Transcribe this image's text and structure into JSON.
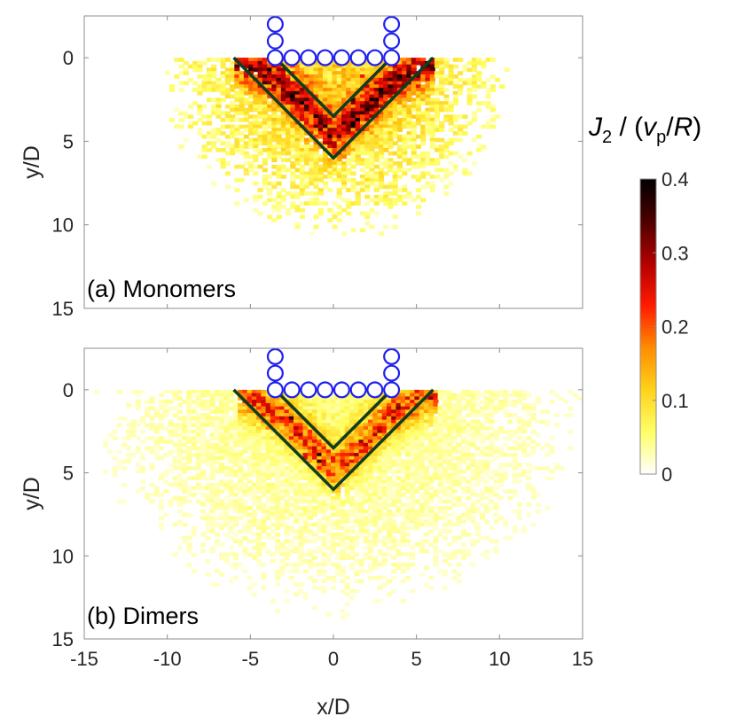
{
  "colors": {
    "background": "#ffffff",
    "axis": "#8c8c8c",
    "text": "#262626",
    "wedge": "#0f3d21",
    "particle": "#1f1ff0",
    "colormap": [
      "#ffffff",
      "#ffff66",
      "#ffd21a",
      "#ff8c00",
      "#ff1a00",
      "#b30000",
      "#4d0000",
      "#000000"
    ]
  },
  "colorbar": {
    "title_var": "J",
    "title_sub": "2",
    "title_mid": " / (",
    "title_v": "v",
    "title_vsub": "p",
    "title_slash": "/",
    "title_R": "R",
    "title_close": ")",
    "min": 0,
    "max": 0.4,
    "ticks": [
      "0",
      "0.1",
      "0.2",
      "0.3",
      "0.4"
    ]
  },
  "chart_data": [
    {
      "type": "heatmap",
      "panel_label": "(a) Monomers",
      "xlabel": "",
      "ylabel": "y/D",
      "xlim": [
        -15,
        15
      ],
      "ylim": [
        15,
        -2.5
      ],
      "y_inverted": true,
      "yticks": [
        "0",
        "5",
        "10",
        "15"
      ],
      "xticks": [],
      "field": {
        "x_extent": [
          -11,
          11
        ],
        "depth": 11,
        "core_x": [
          -6,
          6
        ],
        "hot_bands": "V-shaped band between the two wedge lines",
        "typical_value": 0.12,
        "max_value": 0.35
      },
      "wedge_lines": [
        {
          "x": [
            -6,
            0,
            6
          ],
          "y": [
            0,
            6,
            0
          ]
        },
        {
          "x": [
            -3.5,
            0,
            3.5
          ],
          "y": [
            0,
            3.5,
            0
          ]
        }
      ],
      "particles": {
        "diameter": 1,
        "centers": [
          {
            "x": -3.5,
            "y": -2
          },
          {
            "x": -3.5,
            "y": -1
          },
          {
            "x": -3.5,
            "y": 0
          },
          {
            "x": -2.5,
            "y": 0
          },
          {
            "x": -1.5,
            "y": 0
          },
          {
            "x": -0.5,
            "y": 0
          },
          {
            "x": 0.5,
            "y": 0
          },
          {
            "x": 1.5,
            "y": 0
          },
          {
            "x": 2.5,
            "y": 0
          },
          {
            "x": 3.5,
            "y": 0
          },
          {
            "x": 3.5,
            "y": -1
          },
          {
            "x": 3.5,
            "y": -2
          }
        ]
      }
    },
    {
      "type": "heatmap",
      "panel_label": "(b) Dimers",
      "xlabel": "x/D",
      "ylabel": "y/D",
      "xlim": [
        -15,
        15
      ],
      "ylim": [
        15,
        -2.5
      ],
      "y_inverted": true,
      "yticks": [
        "0",
        "5",
        "10",
        "15"
      ],
      "xticks": [
        "-15",
        "-10",
        "-5",
        "0",
        "5",
        "10",
        "15"
      ],
      "field": {
        "x_extent": [
          -15,
          15
        ],
        "depth": 14,
        "core_x": [
          -6,
          6
        ],
        "hot_bands": "V-shaped band between the two wedge lines, broad faint halo",
        "typical_value": 0.08,
        "max_value": 0.35
      },
      "wedge_lines": [
        {
          "x": [
            -6,
            0,
            6
          ],
          "y": [
            0,
            6,
            0
          ]
        },
        {
          "x": [
            -3.5,
            0,
            3.5
          ],
          "y": [
            0,
            3.5,
            0
          ]
        }
      ],
      "particles": {
        "diameter": 1,
        "centers": [
          {
            "x": -3.5,
            "y": -2
          },
          {
            "x": -3.5,
            "y": -1
          },
          {
            "x": -3.5,
            "y": 0
          },
          {
            "x": -2.5,
            "y": 0
          },
          {
            "x": -1.5,
            "y": 0
          },
          {
            "x": -0.5,
            "y": 0
          },
          {
            "x": 0.5,
            "y": 0
          },
          {
            "x": 1.5,
            "y": 0
          },
          {
            "x": 2.5,
            "y": 0
          },
          {
            "x": 3.5,
            "y": 0
          },
          {
            "x": 3.5,
            "y": -1
          },
          {
            "x": 3.5,
            "y": -2
          }
        ]
      }
    }
  ]
}
